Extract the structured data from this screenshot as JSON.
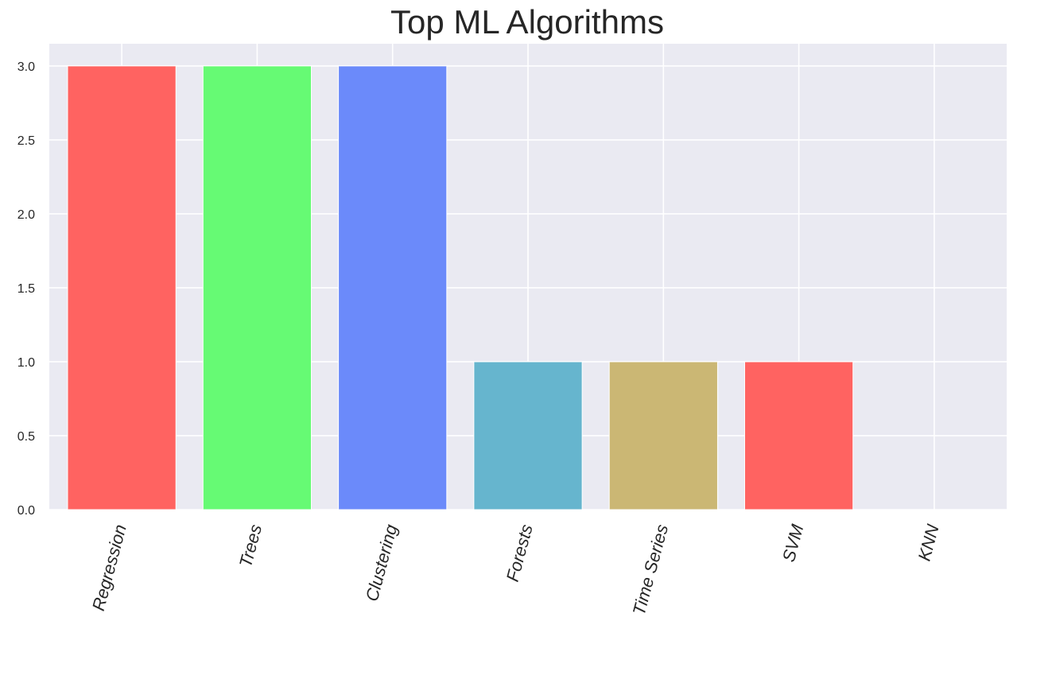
{
  "chart_data": {
    "type": "bar",
    "title": "Top ML Algorithms",
    "xlabel": "",
    "ylabel": "",
    "categories": [
      "Regression",
      "Trees",
      "Clustering",
      "Forests",
      "Time Series",
      "SVM",
      "KNN"
    ],
    "values": [
      3,
      3,
      3,
      1,
      1,
      1,
      0
    ],
    "colors": [
      "#ff6361",
      "#66fa74",
      "#6b8afa",
      "#66b5ce",
      "#cbb774",
      "#ff6361",
      "#6b8afa"
    ],
    "ylim": [
      0,
      3.15
    ],
    "yticks": [
      "0.0",
      "0.5",
      "1.0",
      "1.5",
      "2.0",
      "2.5",
      "3.0"
    ],
    "grid": true,
    "background": "#eaeaf2",
    "gridcolor": "#ffffff",
    "legend": "none"
  }
}
